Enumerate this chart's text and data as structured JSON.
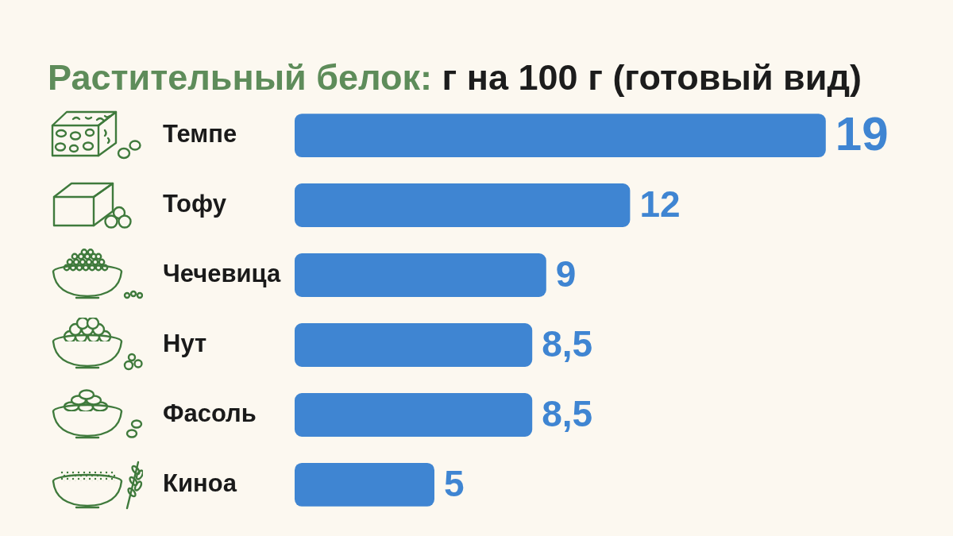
{
  "chart_data": {
    "type": "bar",
    "orientation": "horizontal",
    "title": "Растительный белок: г на 100 г (готовый вид)",
    "categories": [
      "Темпе",
      "Тофу",
      "Чечевица",
      "Нут",
      "Фасоль",
      "Киноа"
    ],
    "values": [
      19,
      12,
      9,
      8.5,
      8.5,
      5
    ],
    "value_labels": [
      "19",
      "12",
      "9",
      "8,5",
      "8,5",
      "5"
    ],
    "color": "#3f85d2",
    "tick_labels": "y"
  }
}
